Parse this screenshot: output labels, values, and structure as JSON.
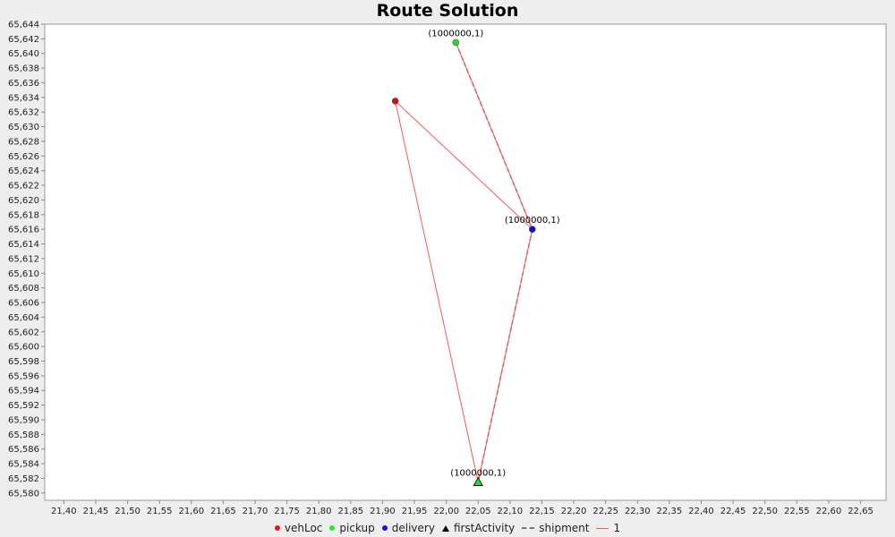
{
  "chart_data": {
    "type": "scatter",
    "title": "Route Solution",
    "xlim": [
      21.37,
      22.69
    ],
    "ylim": [
      65.579,
      65.644
    ],
    "x_ticks": [
      21.4,
      21.45,
      21.5,
      21.55,
      21.6,
      21.65,
      21.7,
      21.75,
      21.8,
      21.85,
      21.9,
      21.95,
      22.0,
      22.05,
      22.1,
      22.15,
      22.2,
      22.25,
      22.3,
      22.35,
      22.4,
      22.45,
      22.5,
      22.55,
      22.6,
      22.65
    ],
    "x_tick_labels": [
      "21,40",
      "21,45",
      "21,50",
      "21,55",
      "21,60",
      "21,65",
      "21,70",
      "21,75",
      "21,80",
      "21,85",
      "21,90",
      "21,95",
      "22,00",
      "22,05",
      "22,10",
      "22,15",
      "22,20",
      "22,25",
      "22,30",
      "22,35",
      "22,40",
      "22,45",
      "22,50",
      "22,55",
      "22,60",
      "22,65"
    ],
    "y_ticks": [
      65.58,
      65.582,
      65.584,
      65.586,
      65.588,
      65.59,
      65.592,
      65.594,
      65.596,
      65.598,
      65.6,
      65.602,
      65.604,
      65.606,
      65.608,
      65.61,
      65.612,
      65.614,
      65.616,
      65.618,
      65.62,
      65.622,
      65.624,
      65.626,
      65.628,
      65.63,
      65.632,
      65.634,
      65.636,
      65.638,
      65.64,
      65.642,
      65.644
    ],
    "y_tick_labels": [
      "65,580",
      "65,582",
      "65,584",
      "65,586",
      "65,588",
      "65,590",
      "65,592",
      "65,594",
      "65,596",
      "65,598",
      "65,600",
      "65,602",
      "65,604",
      "65,606",
      "65,608",
      "65,610",
      "65,612",
      "65,614",
      "65,616",
      "65,618",
      "65,620",
      "65,622",
      "65,624",
      "65,626",
      "65,628",
      "65,630",
      "65,632",
      "65,634",
      "65,636",
      "65,638",
      "65,640",
      "65,642",
      "65,644"
    ],
    "grid": false,
    "legend_position": "bottom",
    "series": [
      {
        "name": "vehLoc",
        "marker": "circle",
        "color": "#cc1111",
        "points": [
          {
            "x": 21.92,
            "y": 65.6335
          }
        ]
      },
      {
        "name": "pickup",
        "marker": "circle",
        "color": "#22dd22",
        "points": [
          {
            "x": 22.015,
            "y": 65.6415,
            "label": "(1000000,1)"
          }
        ]
      },
      {
        "name": "delivery",
        "marker": "circle",
        "color": "#1111cc",
        "points": [
          {
            "x": 22.135,
            "y": 65.616,
            "label": "(1000000,1)"
          }
        ]
      },
      {
        "name": "firstActivity",
        "marker": "triangle",
        "color": "#22dd22",
        "points": [
          {
            "x": 22.05,
            "y": 65.5815,
            "label": "(1000000,1)"
          }
        ]
      }
    ],
    "shipment_lines": {
      "name": "shipment",
      "color": "#777777",
      "segments": [
        [
          {
            "x": 22.015,
            "y": 65.6415
          },
          {
            "x": 22.135,
            "y": 65.616
          }
        ],
        [
          {
            "x": 22.135,
            "y": 65.616
          },
          {
            "x": 22.05,
            "y": 65.5815
          }
        ]
      ]
    },
    "route": {
      "name": "1",
      "color": "#ff5555",
      "points": [
        {
          "x": 21.92,
          "y": 65.6335
        },
        {
          "x": 22.05,
          "y": 65.5815
        },
        {
          "x": 22.135,
          "y": 65.616
        },
        {
          "x": 22.015,
          "y": 65.6415
        },
        {
          "x": 22.135,
          "y": 65.616
        },
        {
          "x": 21.92,
          "y": 65.6335
        }
      ]
    }
  },
  "legend": {
    "items": [
      {
        "label": "vehLoc",
        "type": "dot",
        "color": "#ee1111"
      },
      {
        "label": "pickup",
        "type": "dot",
        "color": "#22ee22"
      },
      {
        "label": "delivery",
        "type": "dot",
        "color": "#1111dd"
      },
      {
        "label": "firstActivity",
        "type": "triangle",
        "color": "#000000"
      },
      {
        "label": "shipment",
        "type": "dash",
        "color": "#777777"
      },
      {
        "label": "1",
        "type": "line",
        "color": "#ff5555"
      }
    ]
  }
}
